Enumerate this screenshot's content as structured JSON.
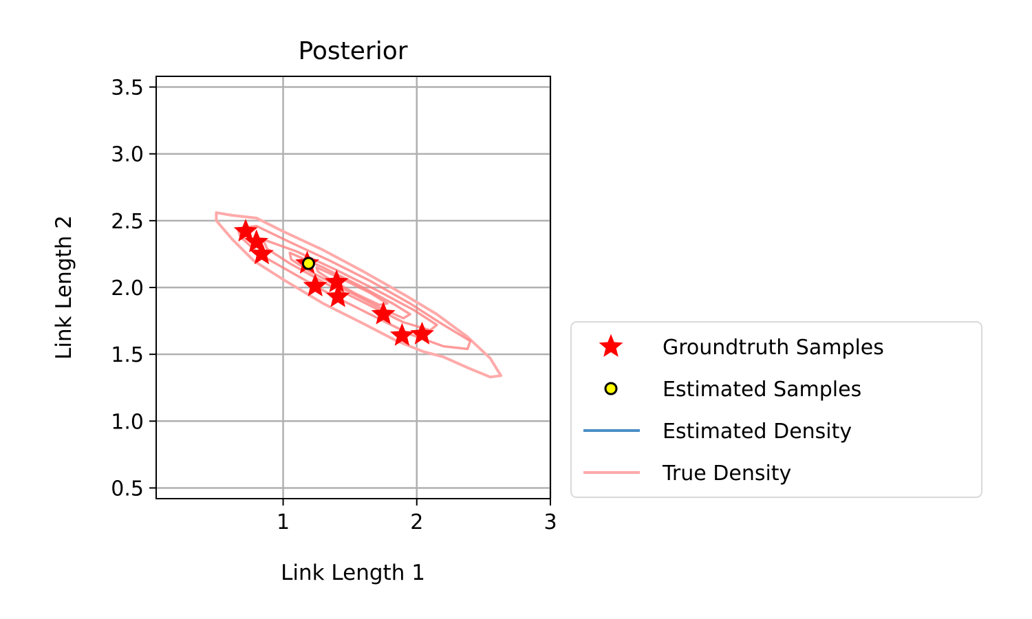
{
  "chart_data": {
    "type": "scatter",
    "title": "Posterior",
    "xlabel": "Link Length 1",
    "ylabel": "Link Length 2",
    "xlim": [
      0.05,
      3.0
    ],
    "ylim": [
      0.42,
      3.58
    ],
    "xticks": [
      1,
      2,
      3
    ],
    "yticks": [
      0.5,
      1.0,
      1.5,
      2.0,
      2.5,
      3.0,
      3.5
    ],
    "xtick_labels": [
      "1",
      "2",
      "3"
    ],
    "ytick_labels": [
      "0.5",
      "1.0",
      "1.5",
      "2.0",
      "2.5",
      "3.0",
      "3.5"
    ],
    "grid": true,
    "legend_position": "outside-right",
    "series": [
      {
        "name": "Groundtruth Samples",
        "marker": "star",
        "color": "#ff0000",
        "points": [
          [
            0.72,
            2.42
          ],
          [
            0.8,
            2.34
          ],
          [
            0.84,
            2.25
          ],
          [
            1.18,
            2.18
          ],
          [
            1.24,
            2.01
          ],
          [
            1.4,
            2.04
          ],
          [
            1.41,
            1.93
          ],
          [
            1.75,
            1.8
          ],
          [
            1.89,
            1.64
          ],
          [
            2.04,
            1.65
          ]
        ]
      },
      {
        "name": "Estimated Samples",
        "marker": "circle",
        "color": "#ffff00",
        "edge_color": "#000000",
        "points": [
          [
            1.19,
            2.18
          ]
        ]
      },
      {
        "name": "Estimated Density",
        "type": "line",
        "color": "#4a8fc7",
        "points": []
      },
      {
        "name": "True Density",
        "type": "contour",
        "color": "#ffaaaa",
        "contours": [
          [
            [
              0.5,
              2.56
            ],
            [
              0.62,
              2.54
            ],
            [
              0.8,
              2.52
            ],
            [
              1.0,
              2.42
            ],
            [
              1.3,
              2.28
            ],
            [
              1.6,
              2.12
            ],
            [
              1.9,
              1.95
            ],
            [
              2.15,
              1.8
            ],
            [
              2.38,
              1.63
            ],
            [
              2.55,
              1.47
            ],
            [
              2.63,
              1.34
            ],
            [
              2.55,
              1.33
            ],
            [
              2.38,
              1.4
            ],
            [
              2.2,
              1.48
            ],
            [
              2.05,
              1.52
            ],
            [
              1.85,
              1.6
            ],
            [
              1.6,
              1.73
            ],
            [
              1.3,
              1.88
            ],
            [
              1.0,
              2.06
            ],
            [
              0.78,
              2.2
            ],
            [
              0.62,
              2.36
            ],
            [
              0.5,
              2.5
            ],
            [
              0.5,
              2.56
            ]
          ],
          [
            [
              0.66,
              2.44
            ],
            [
              0.8,
              2.46
            ],
            [
              1.05,
              2.34
            ],
            [
              1.35,
              2.2
            ],
            [
              1.65,
              2.05
            ],
            [
              1.95,
              1.88
            ],
            [
              2.2,
              1.72
            ],
            [
              2.4,
              1.6
            ],
            [
              2.38,
              1.54
            ],
            [
              2.2,
              1.56
            ],
            [
              1.95,
              1.65
            ],
            [
              1.65,
              1.8
            ],
            [
              1.35,
              1.95
            ],
            [
              1.05,
              2.12
            ],
            [
              0.82,
              2.25
            ],
            [
              0.68,
              2.38
            ],
            [
              0.66,
              2.44
            ]
          ],
          [
            [
              0.85,
              2.36
            ],
            [
              1.1,
              2.27
            ],
            [
              1.4,
              2.13
            ],
            [
              1.7,
              1.98
            ],
            [
              1.98,
              1.83
            ],
            [
              2.15,
              1.72
            ],
            [
              2.1,
              1.68
            ],
            [
              1.9,
              1.74
            ],
            [
              1.62,
              1.88
            ],
            [
              1.32,
              2.03
            ],
            [
              1.05,
              2.18
            ],
            [
              0.88,
              2.29
            ],
            [
              0.85,
              2.36
            ]
          ],
          [
            [
              1.05,
              2.26
            ],
            [
              1.3,
              2.15
            ],
            [
              1.58,
              2.01
            ],
            [
              1.82,
              1.88
            ],
            [
              1.95,
              1.8
            ],
            [
              1.9,
              1.77
            ],
            [
              1.7,
              1.86
            ],
            [
              1.45,
              1.99
            ],
            [
              1.2,
              2.12
            ],
            [
              1.06,
              2.21
            ],
            [
              1.05,
              2.26
            ]
          ],
          [
            [
              1.25,
              2.15
            ],
            [
              1.45,
              2.06
            ],
            [
              1.65,
              1.96
            ],
            [
              1.78,
              1.88
            ],
            [
              1.72,
              1.87
            ],
            [
              1.55,
              1.95
            ],
            [
              1.35,
              2.06
            ],
            [
              1.26,
              2.12
            ],
            [
              1.25,
              2.15
            ]
          ]
        ]
      }
    ]
  }
}
